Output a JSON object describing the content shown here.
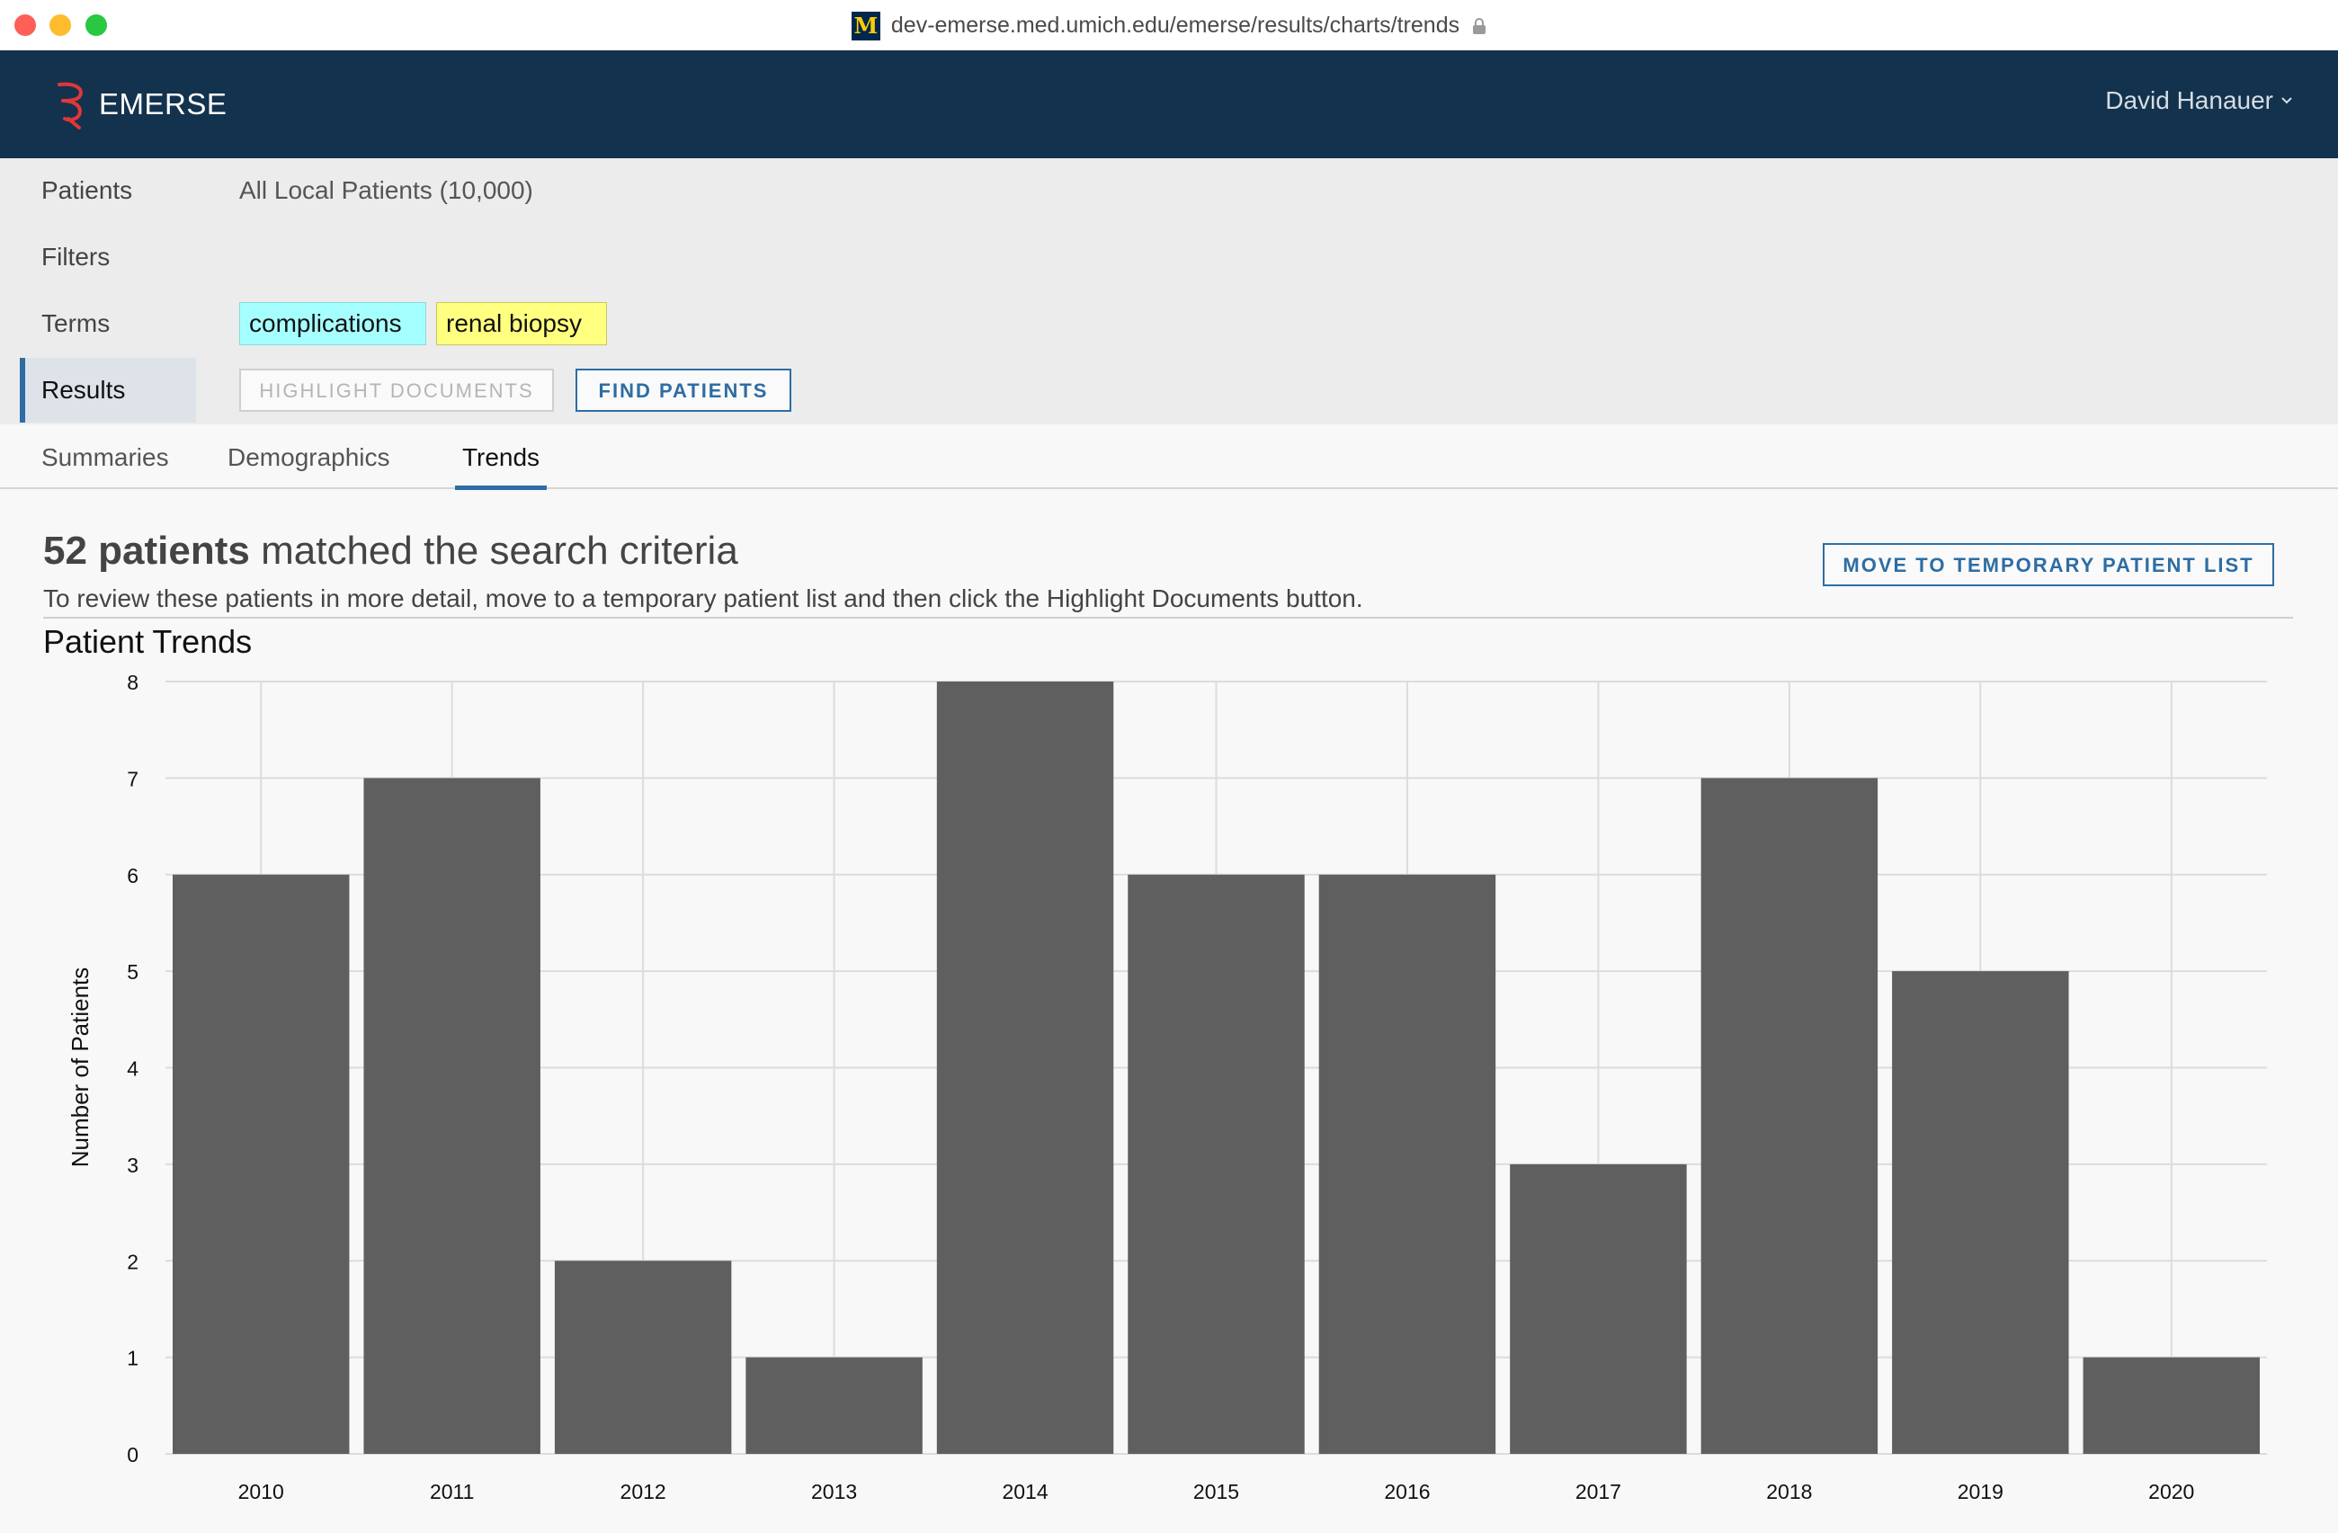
{
  "browser": {
    "url": "dev-emerse.med.umich.edu/emerse/results/charts/trends",
    "favicon": "M"
  },
  "header": {
    "brand": "EMERSE",
    "user": "David Hanauer"
  },
  "criteria": {
    "patients_label": "Patients",
    "patients_value": "All Local Patients (10,000)",
    "filters_label": "Filters",
    "terms_label": "Terms",
    "terms": [
      "complications",
      "renal biopsy"
    ],
    "results_label": "Results",
    "highlight_button": "HIGHLIGHT DOCUMENTS",
    "find_button": "FIND PATIENTS"
  },
  "tabs": [
    "Summaries",
    "Demographics",
    "Trends"
  ],
  "summary": {
    "count": "52 patients",
    "headline_rest": " matched the search criteria",
    "subline": "To review these patients in more detail, move to a temporary patient list and then click the Highlight Documents button.",
    "move_button": "MOVE TO TEMPORARY PATIENT LIST"
  },
  "colors": {
    "header_bg": "#13324d",
    "accent": "#2d6da3",
    "bar": "#5f5f5f",
    "term_cyan": "#a6ffff",
    "term_yellow": "#ffff80"
  },
  "chart_data": {
    "type": "bar",
    "title": "Patient Trends",
    "ylabel": "Number of Patients",
    "xlabel": "",
    "categories": [
      "2010",
      "2011",
      "2012",
      "2013",
      "2014",
      "2015",
      "2016",
      "2017",
      "2018",
      "2019",
      "2020"
    ],
    "values": [
      6,
      7,
      2,
      1,
      8,
      6,
      6,
      3,
      7,
      5,
      1
    ],
    "ylim": [
      0,
      8
    ],
    "yticks": [
      0,
      1,
      2,
      3,
      4,
      5,
      6,
      7,
      8
    ],
    "grid": true
  }
}
